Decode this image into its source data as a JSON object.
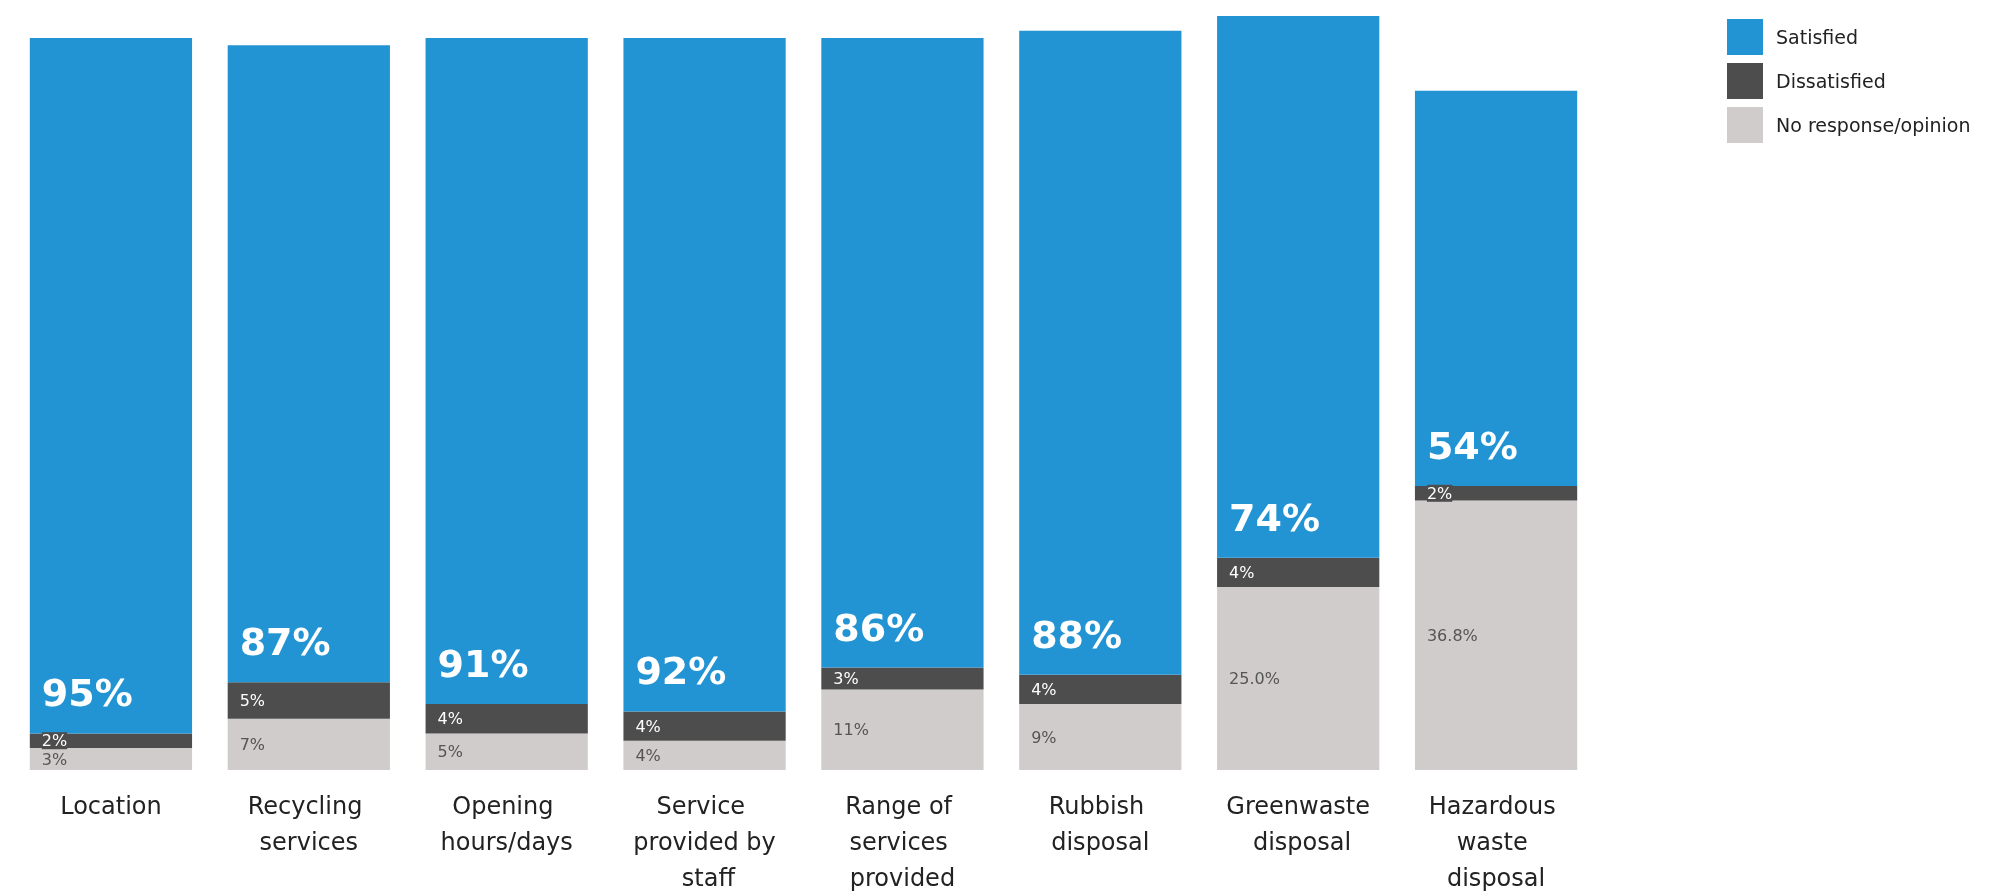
{
  "chart_data": {
    "type": "bar",
    "stacked": true,
    "legend": "top right",
    "categories": [
      "Location",
      "Recycling services",
      "Opening hours/days",
      "Service provided by staff",
      "Range of services provided",
      "Rubbish disposal",
      "Greenwaste disposal",
      "Hazardous waste disposal"
    ],
    "series": [
      {
        "name": "No response/opinion",
        "color": "#d0cccb",
        "values": [
          3,
          7,
          5,
          4,
          11,
          9,
          25.0,
          36.8
        ],
        "value_labels": [
          "3%",
          "7%",
          "5%",
          "4%",
          "11%",
          "9%",
          "25.0%",
          "36.8%"
        ]
      },
      {
        "name": "Dissatisfied",
        "color": "#4d4d4d",
        "values": [
          2,
          5,
          4,
          4,
          3,
          4,
          4,
          2
        ],
        "value_labels": [
          "2%",
          "5%",
          "4%",
          "4%",
          "3%",
          "4%",
          "4%",
          "2%"
        ]
      },
      {
        "name": "Satisfied",
        "color": "#2394d3",
        "values": [
          95,
          87,
          91,
          92,
          86,
          88,
          74,
          54
        ],
        "value_labels": [
          "95%",
          "87%",
          "91%",
          "92%",
          "86%",
          "88%",
          "74%",
          "54%"
        ]
      }
    ]
  }
}
